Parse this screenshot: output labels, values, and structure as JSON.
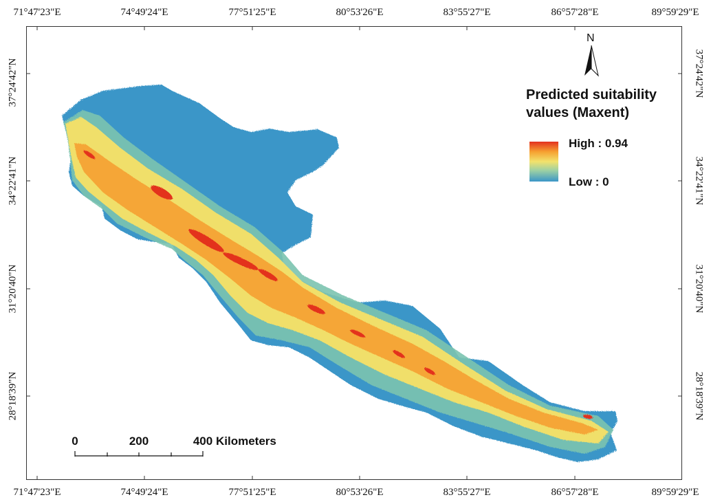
{
  "graticule": {
    "longitudes": [
      "71°47'23\"E",
      "74°49'24\"E",
      "77°51'25\"E",
      "80°53'26\"E",
      "83°55'27\"E",
      "86°57'28\"E",
      "89°59'29\"E"
    ],
    "latitudes": [
      "37°24'42\"N",
      "34°22'41\"N",
      "31°20'40\"N",
      "28°18'39\"N"
    ]
  },
  "legend": {
    "title_line1": "Predicted suitability",
    "title_line2": "values (Maxent)",
    "high_label": "High : 0.94",
    "low_label": "Low : 0",
    "colors": {
      "high": "#e3311f",
      "mid_high": "#f6a030",
      "mid": "#f2e26c",
      "mid_low": "#9ed1a3",
      "low": "#3b96c8"
    }
  },
  "north_arrow": {
    "letter": "N",
    "icon": "north-arrow-icon"
  },
  "scale_bar": {
    "labels": [
      "0",
      "200",
      "400"
    ],
    "units": "Kilometers"
  }
}
